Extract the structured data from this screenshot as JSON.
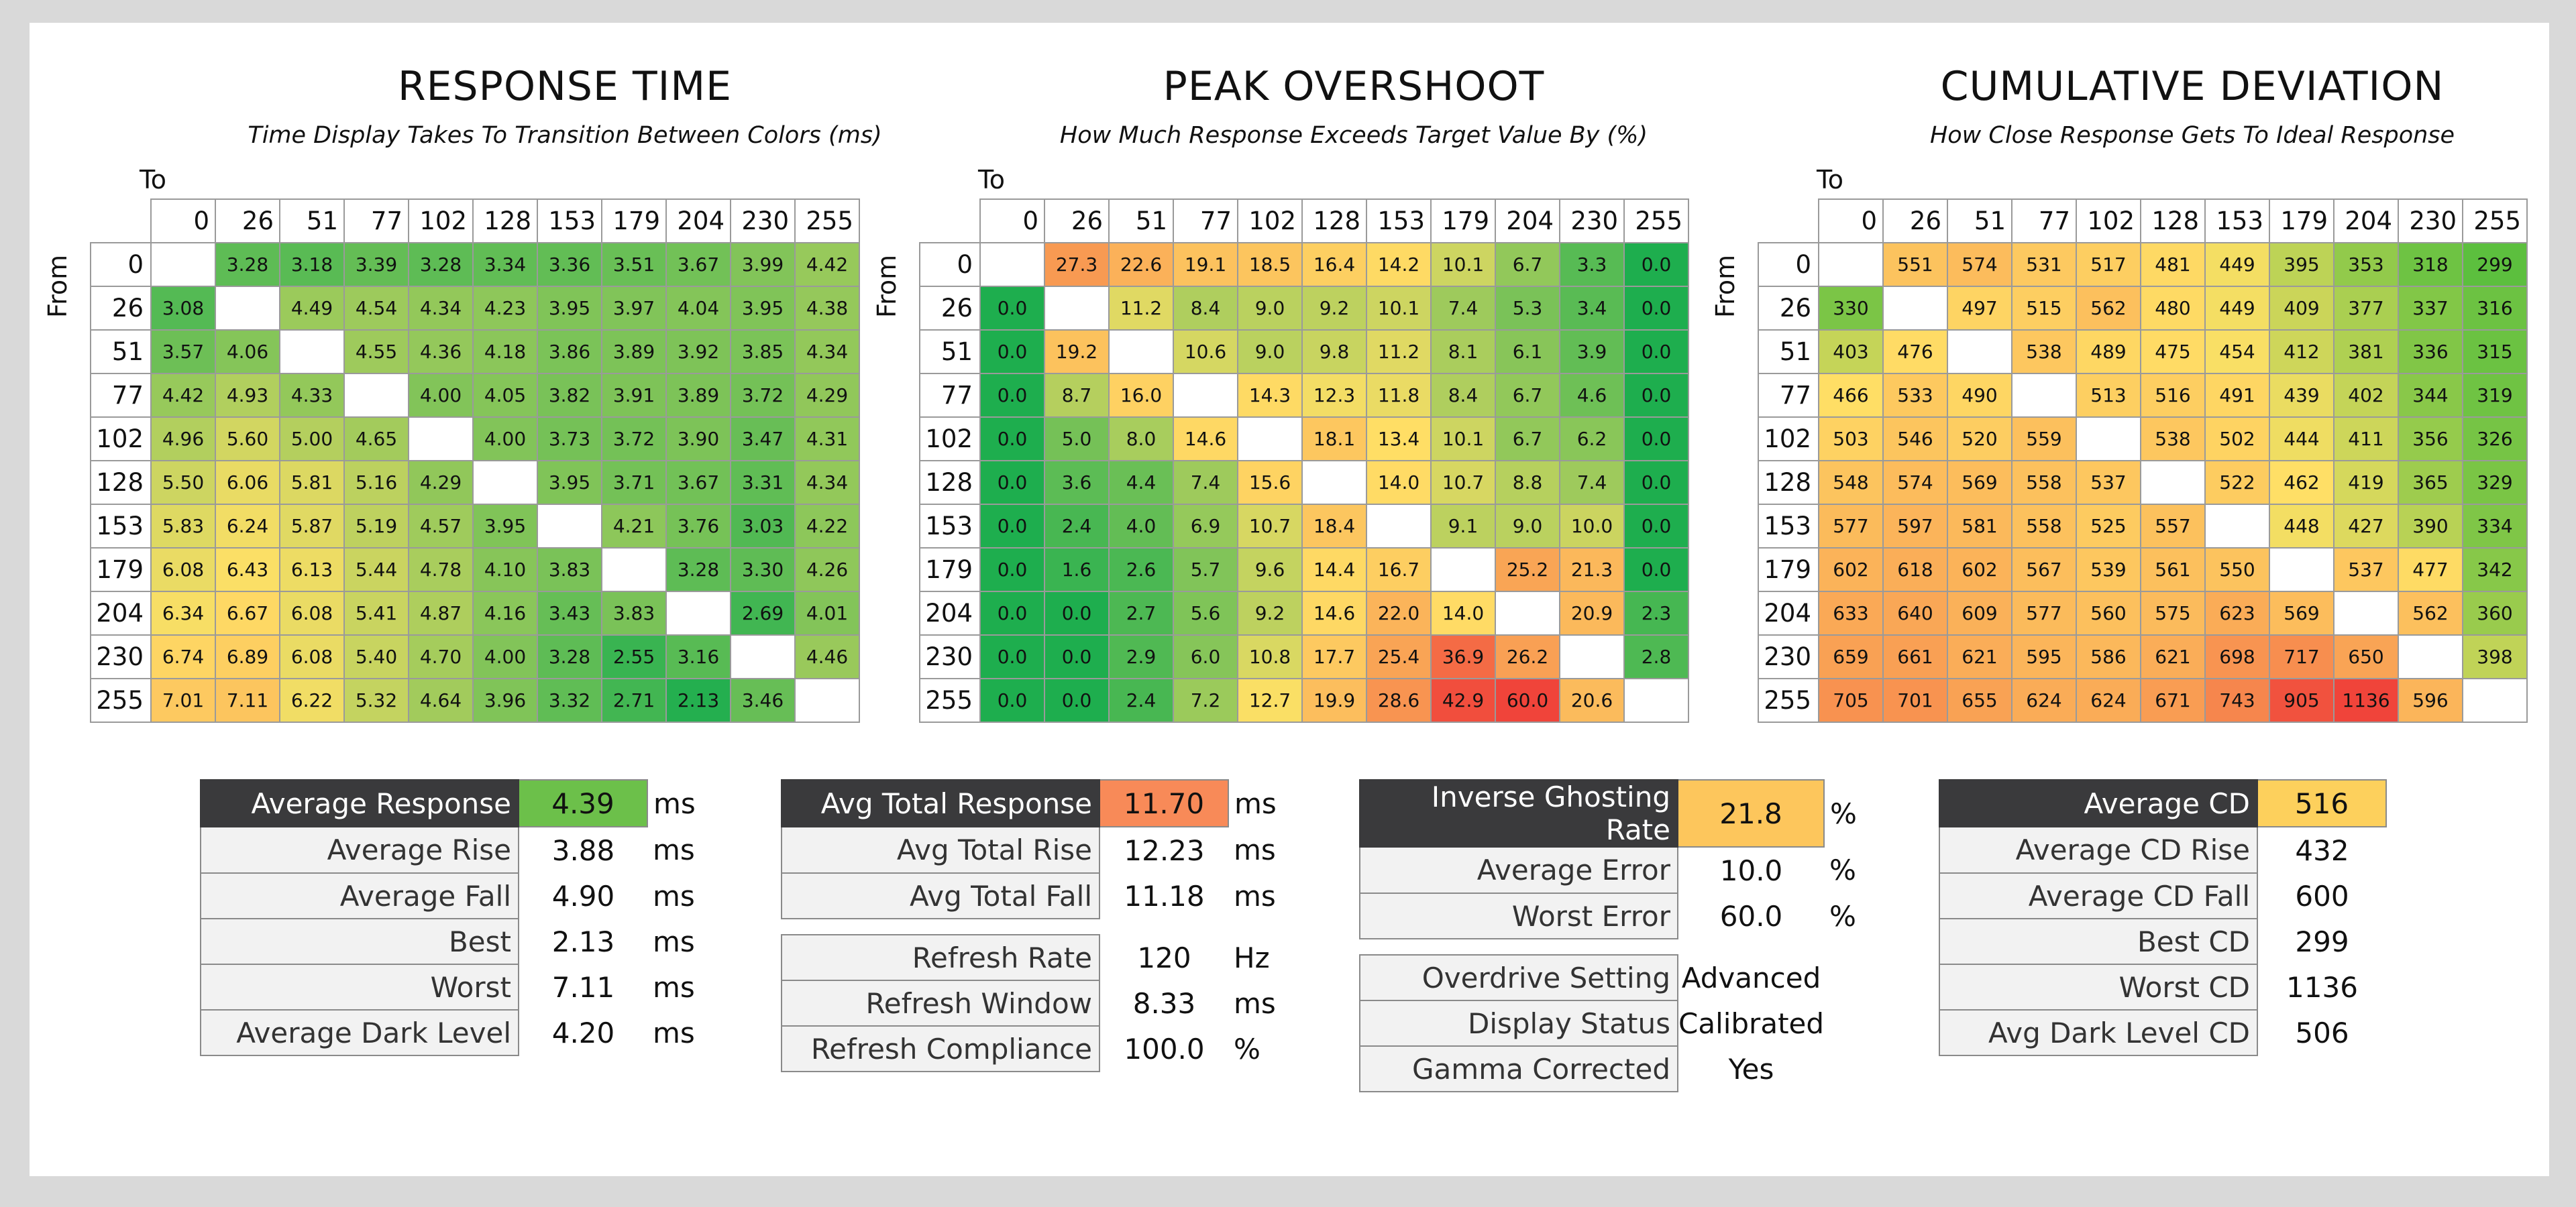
{
  "chart_data": [
    {
      "type": "heatmap",
      "title": "RESPONSE TIME",
      "subtitle": "Time Display Takes To Transition Between Colors (ms)",
      "xlabel": "To",
      "ylabel": "From",
      "x": [
        "0",
        "26",
        "51",
        "77",
        "102",
        "128",
        "153",
        "179",
        "204",
        "230",
        "255"
      ],
      "y": [
        "0",
        "26",
        "51",
        "77",
        "102",
        "128",
        "153",
        "179",
        "204",
        "230",
        "255"
      ],
      "values": [
        [
          null,
          "3.28",
          "3.18",
          "3.39",
          "3.28",
          "3.34",
          "3.36",
          "3.51",
          "3.67",
          "3.99",
          "4.42"
        ],
        [
          "3.08",
          null,
          "4.49",
          "4.54",
          "4.34",
          "4.23",
          "3.95",
          "3.97",
          "4.04",
          "3.95",
          "4.38"
        ],
        [
          "3.57",
          "4.06",
          null,
          "4.55",
          "4.36",
          "4.18",
          "3.86",
          "3.89",
          "3.92",
          "3.85",
          "4.34"
        ],
        [
          "4.42",
          "4.93",
          "4.33",
          null,
          "4.00",
          "4.05",
          "3.82",
          "3.91",
          "3.89",
          "3.72",
          "4.29"
        ],
        [
          "4.96",
          "5.60",
          "5.00",
          "4.65",
          null,
          "4.00",
          "3.73",
          "3.72",
          "3.90",
          "3.47",
          "4.31"
        ],
        [
          "5.50",
          "6.06",
          "5.81",
          "5.16",
          "4.29",
          null,
          "3.95",
          "3.71",
          "3.67",
          "3.31",
          "4.34"
        ],
        [
          "5.83",
          "6.24",
          "5.87",
          "5.19",
          "4.57",
          "3.95",
          null,
          "4.21",
          "3.76",
          "3.03",
          "4.22"
        ],
        [
          "6.08",
          "6.43",
          "6.13",
          "5.44",
          "4.78",
          "4.10",
          "3.83",
          null,
          "3.28",
          "3.30",
          "4.26"
        ],
        [
          "6.34",
          "6.67",
          "6.08",
          "5.41",
          "4.87",
          "4.16",
          "3.43",
          "3.83",
          null,
          "2.69",
          "4.01"
        ],
        [
          "6.74",
          "6.89",
          "6.08",
          "5.40",
          "4.70",
          "4.00",
          "3.28",
          "2.55",
          "3.16",
          null,
          "4.46"
        ],
        [
          "7.01",
          "7.11",
          "6.22",
          "5.32",
          "4.64",
          "3.96",
          "3.32",
          "2.71",
          "2.13",
          "3.46",
          null
        ]
      ],
      "color_scale": {
        "low": "#1eae4e",
        "mid": "#ffe066",
        "high": "#f0443a",
        "min": 2.0,
        "mid_value": 6.5,
        "max": 10.0
      }
    },
    {
      "type": "heatmap",
      "title": "PEAK OVERSHOOT",
      "subtitle": "How Much Response Exceeds Target Value By (%)",
      "xlabel": "To",
      "ylabel": "From",
      "x": [
        "0",
        "26",
        "51",
        "77",
        "102",
        "128",
        "153",
        "179",
        "204",
        "230",
        "255"
      ],
      "y": [
        "0",
        "26",
        "51",
        "77",
        "102",
        "128",
        "153",
        "179",
        "204",
        "230",
        "255"
      ],
      "values": [
        [
          null,
          "27.3",
          "22.6",
          "19.1",
          "18.5",
          "16.4",
          "14.2",
          "10.1",
          "6.7",
          "3.3",
          "0.0"
        ],
        [
          "0.0",
          null,
          "11.2",
          "8.4",
          "9.0",
          "9.2",
          "10.1",
          "7.4",
          "5.3",
          "3.4",
          "0.0"
        ],
        [
          "0.0",
          "19.2",
          null,
          "10.6",
          "9.0",
          "9.8",
          "11.2",
          "8.1",
          "6.1",
          "3.9",
          "0.0"
        ],
        [
          "0.0",
          "8.7",
          "16.0",
          null,
          "14.3",
          "12.3",
          "11.8",
          "8.4",
          "6.7",
          "4.6",
          "0.0"
        ],
        [
          "0.0",
          "5.0",
          "8.0",
          "14.6",
          null,
          "18.1",
          "13.4",
          "10.1",
          "6.7",
          "6.2",
          "0.0"
        ],
        [
          "0.0",
          "3.6",
          "4.4",
          "7.4",
          "15.6",
          null,
          "14.0",
          "10.7",
          "8.8",
          "7.4",
          "0.0"
        ],
        [
          "0.0",
          "2.4",
          "4.0",
          "6.9",
          "10.7",
          "18.4",
          null,
          "9.1",
          "9.0",
          "10.0",
          "0.0"
        ],
        [
          "0.0",
          "1.6",
          "2.6",
          "5.7",
          "9.6",
          "14.4",
          "16.7",
          null,
          "25.2",
          "21.3",
          "0.0"
        ],
        [
          "0.0",
          "0.0",
          "2.7",
          "5.6",
          "9.2",
          "14.6",
          "22.0",
          "14.0",
          null,
          "20.9",
          "2.3"
        ],
        [
          "0.0",
          "0.0",
          "2.9",
          "6.0",
          "10.8",
          "17.7",
          "25.4",
          "36.9",
          "26.2",
          null,
          "2.8"
        ],
        [
          "0.0",
          "0.0",
          "2.4",
          "7.2",
          "12.7",
          "19.9",
          "28.6",
          "42.9",
          "60.0",
          "20.6",
          null
        ]
      ],
      "color_scale": {
        "low": "#1eae4e",
        "mid": "#ffe066",
        "high": "#f0443a",
        "min": 0.0,
        "mid_value": 13.0,
        "max": 45.0
      }
    },
    {
      "type": "heatmap",
      "title": "CUMULATIVE DEVIATION",
      "subtitle": "How Close Response Gets To Ideal Response",
      "xlabel": "To",
      "ylabel": "From",
      "x": [
        "0",
        "26",
        "51",
        "77",
        "102",
        "128",
        "153",
        "179",
        "204",
        "230",
        "255"
      ],
      "y": [
        "0",
        "26",
        "51",
        "77",
        "102",
        "128",
        "153",
        "179",
        "204",
        "230",
        "255"
      ],
      "values": [
        [
          null,
          "551",
          "574",
          "531",
          "517",
          "481",
          "449",
          "395",
          "353",
          "318",
          "299"
        ],
        [
          "330",
          null,
          "497",
          "515",
          "562",
          "480",
          "449",
          "409",
          "377",
          "337",
          "316"
        ],
        [
          "403",
          "476",
          null,
          "538",
          "489",
          "475",
          "454",
          "412",
          "381",
          "336",
          "315"
        ],
        [
          "466",
          "533",
          "490",
          null,
          "513",
          "516",
          "491",
          "439",
          "402",
          "344",
          "319"
        ],
        [
          "503",
          "546",
          "520",
          "559",
          null,
          "538",
          "502",
          "444",
          "411",
          "356",
          "326"
        ],
        [
          "548",
          "574",
          "569",
          "558",
          "537",
          null,
          "522",
          "462",
          "419",
          "365",
          "329"
        ],
        [
          "577",
          "597",
          "581",
          "558",
          "525",
          "557",
          null,
          "448",
          "427",
          "390",
          "334"
        ],
        [
          "602",
          "618",
          "602",
          "567",
          "539",
          "561",
          "550",
          null,
          "537",
          "477",
          "342"
        ],
        [
          "633",
          "640",
          "609",
          "577",
          "560",
          "575",
          "623",
          "569",
          null,
          "562",
          "360"
        ],
        [
          "659",
          "661",
          "621",
          "595",
          "586",
          "621",
          "698",
          "717",
          "650",
          null,
          "398"
        ],
        [
          "705",
          "701",
          "655",
          "624",
          "624",
          "671",
          "743",
          "905",
          "1136",
          "596",
          null
        ]
      ],
      "color_scale": {
        "low": "#5cbf3e",
        "mid": "#ffe066",
        "high": "#f0443a",
        "min": 300,
        "mid_value": 460,
        "max": 950
      }
    }
  ],
  "stats": {
    "response": {
      "rows": [
        {
          "label": "Average Response",
          "value": "4.39",
          "unit": "ms",
          "main": true,
          "color": "#6cc04a"
        },
        {
          "label": "Average Rise",
          "value": "3.88",
          "unit": "ms"
        },
        {
          "label": "Average Fall",
          "value": "4.90",
          "unit": "ms"
        },
        {
          "label": "Best",
          "value": "2.13",
          "unit": "ms"
        },
        {
          "label": "Worst",
          "value": "7.11",
          "unit": "ms"
        },
        {
          "label": "Average Dark Level",
          "value": "4.20",
          "unit": "ms"
        }
      ]
    },
    "total": {
      "rows": [
        {
          "label": "Avg Total Response",
          "value": "11.70",
          "unit": "ms",
          "main": true,
          "color": "#f88a58"
        },
        {
          "label": "Avg Total Rise",
          "value": "12.23",
          "unit": "ms"
        },
        {
          "label": "Avg Total Fall",
          "value": "11.18",
          "unit": "ms"
        }
      ],
      "rows2": [
        {
          "label": "Refresh Rate",
          "value": "120",
          "unit": "Hz"
        },
        {
          "label": "Refresh Window",
          "value": "8.33",
          "unit": "ms"
        },
        {
          "label": "Refresh Compliance",
          "value": "100.0",
          "unit": "%"
        }
      ]
    },
    "overshoot": {
      "rows": [
        {
          "label": "Inverse Ghosting Rate",
          "value": "21.8",
          "unit": "%",
          "main": true,
          "color": "#fdc65c"
        },
        {
          "label": "Average Error",
          "value": "10.0",
          "unit": "%"
        },
        {
          "label": "Worst Error",
          "value": "60.0",
          "unit": "%"
        }
      ],
      "rows2": [
        {
          "label": "Overdrive Setting",
          "value": "Advanced",
          "unit": ""
        },
        {
          "label": "Display Status",
          "value": "Calibrated",
          "unit": ""
        },
        {
          "label": "Gamma Corrected",
          "value": "Yes",
          "unit": ""
        }
      ]
    },
    "cd": {
      "rows": [
        {
          "label": "Average CD",
          "value": "516",
          "unit": "",
          "main": true,
          "color": "#fdd05c"
        },
        {
          "label": "Average CD Rise",
          "value": "432",
          "unit": ""
        },
        {
          "label": "Average CD Fall",
          "value": "600",
          "unit": ""
        },
        {
          "label": "Best CD",
          "value": "299",
          "unit": ""
        },
        {
          "label": "Worst CD",
          "value": "1136",
          "unit": ""
        },
        {
          "label": "Avg Dark Level CD",
          "value": "506",
          "unit": ""
        }
      ]
    }
  }
}
